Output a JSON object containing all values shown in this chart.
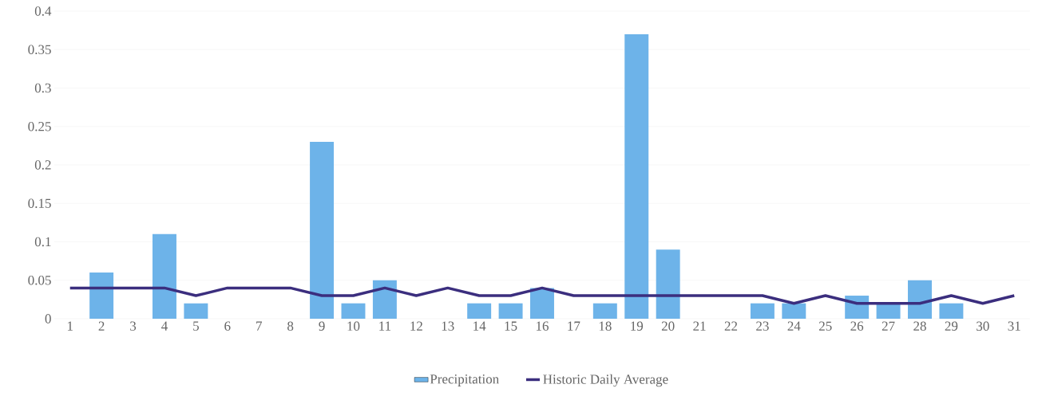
{
  "chart_data": {
    "type": "bar",
    "categories": [
      "1",
      "2",
      "3",
      "4",
      "5",
      "6",
      "7",
      "8",
      "9",
      "10",
      "11",
      "12",
      "13",
      "14",
      "15",
      "16",
      "17",
      "18",
      "19",
      "20",
      "21",
      "22",
      "23",
      "24",
      "25",
      "26",
      "27",
      "28",
      "29",
      "30",
      "31"
    ],
    "series": [
      {
        "name": "Precipitation",
        "color": "#6db3e9",
        "values": [
          0,
          0.06,
          0,
          0.11,
          0.02,
          0,
          0,
          0,
          0.23,
          0.02,
          0.05,
          0,
          0,
          0.02,
          0.02,
          0.04,
          0,
          0.02,
          0.37,
          0.09,
          0,
          0,
          0.02,
          0.02,
          0,
          0.03,
          0.02,
          0.05,
          0.02,
          0,
          0
        ]
      },
      {
        "name": "Historic Daily Average",
        "type": "line",
        "color": "#3b2e7e",
        "values": [
          0.04,
          0.04,
          0.04,
          0.04,
          0.03,
          0.04,
          0.04,
          0.04,
          0.03,
          0.03,
          0.04,
          0.03,
          0.04,
          0.03,
          0.03,
          0.04,
          0.03,
          0.03,
          0.03,
          0.03,
          0.03,
          0.03,
          0.03,
          0.02,
          0.03,
          0.02,
          0.02,
          0.02,
          0.03,
          0.02,
          0.03
        ]
      }
    ],
    "ylim": [
      0,
      0.4
    ],
    "yticks": [
      0,
      0.05,
      0.1,
      0.15,
      0.2,
      0.25,
      0.3,
      0.35,
      0.4
    ],
    "grid": "y",
    "legend": "bottom"
  }
}
